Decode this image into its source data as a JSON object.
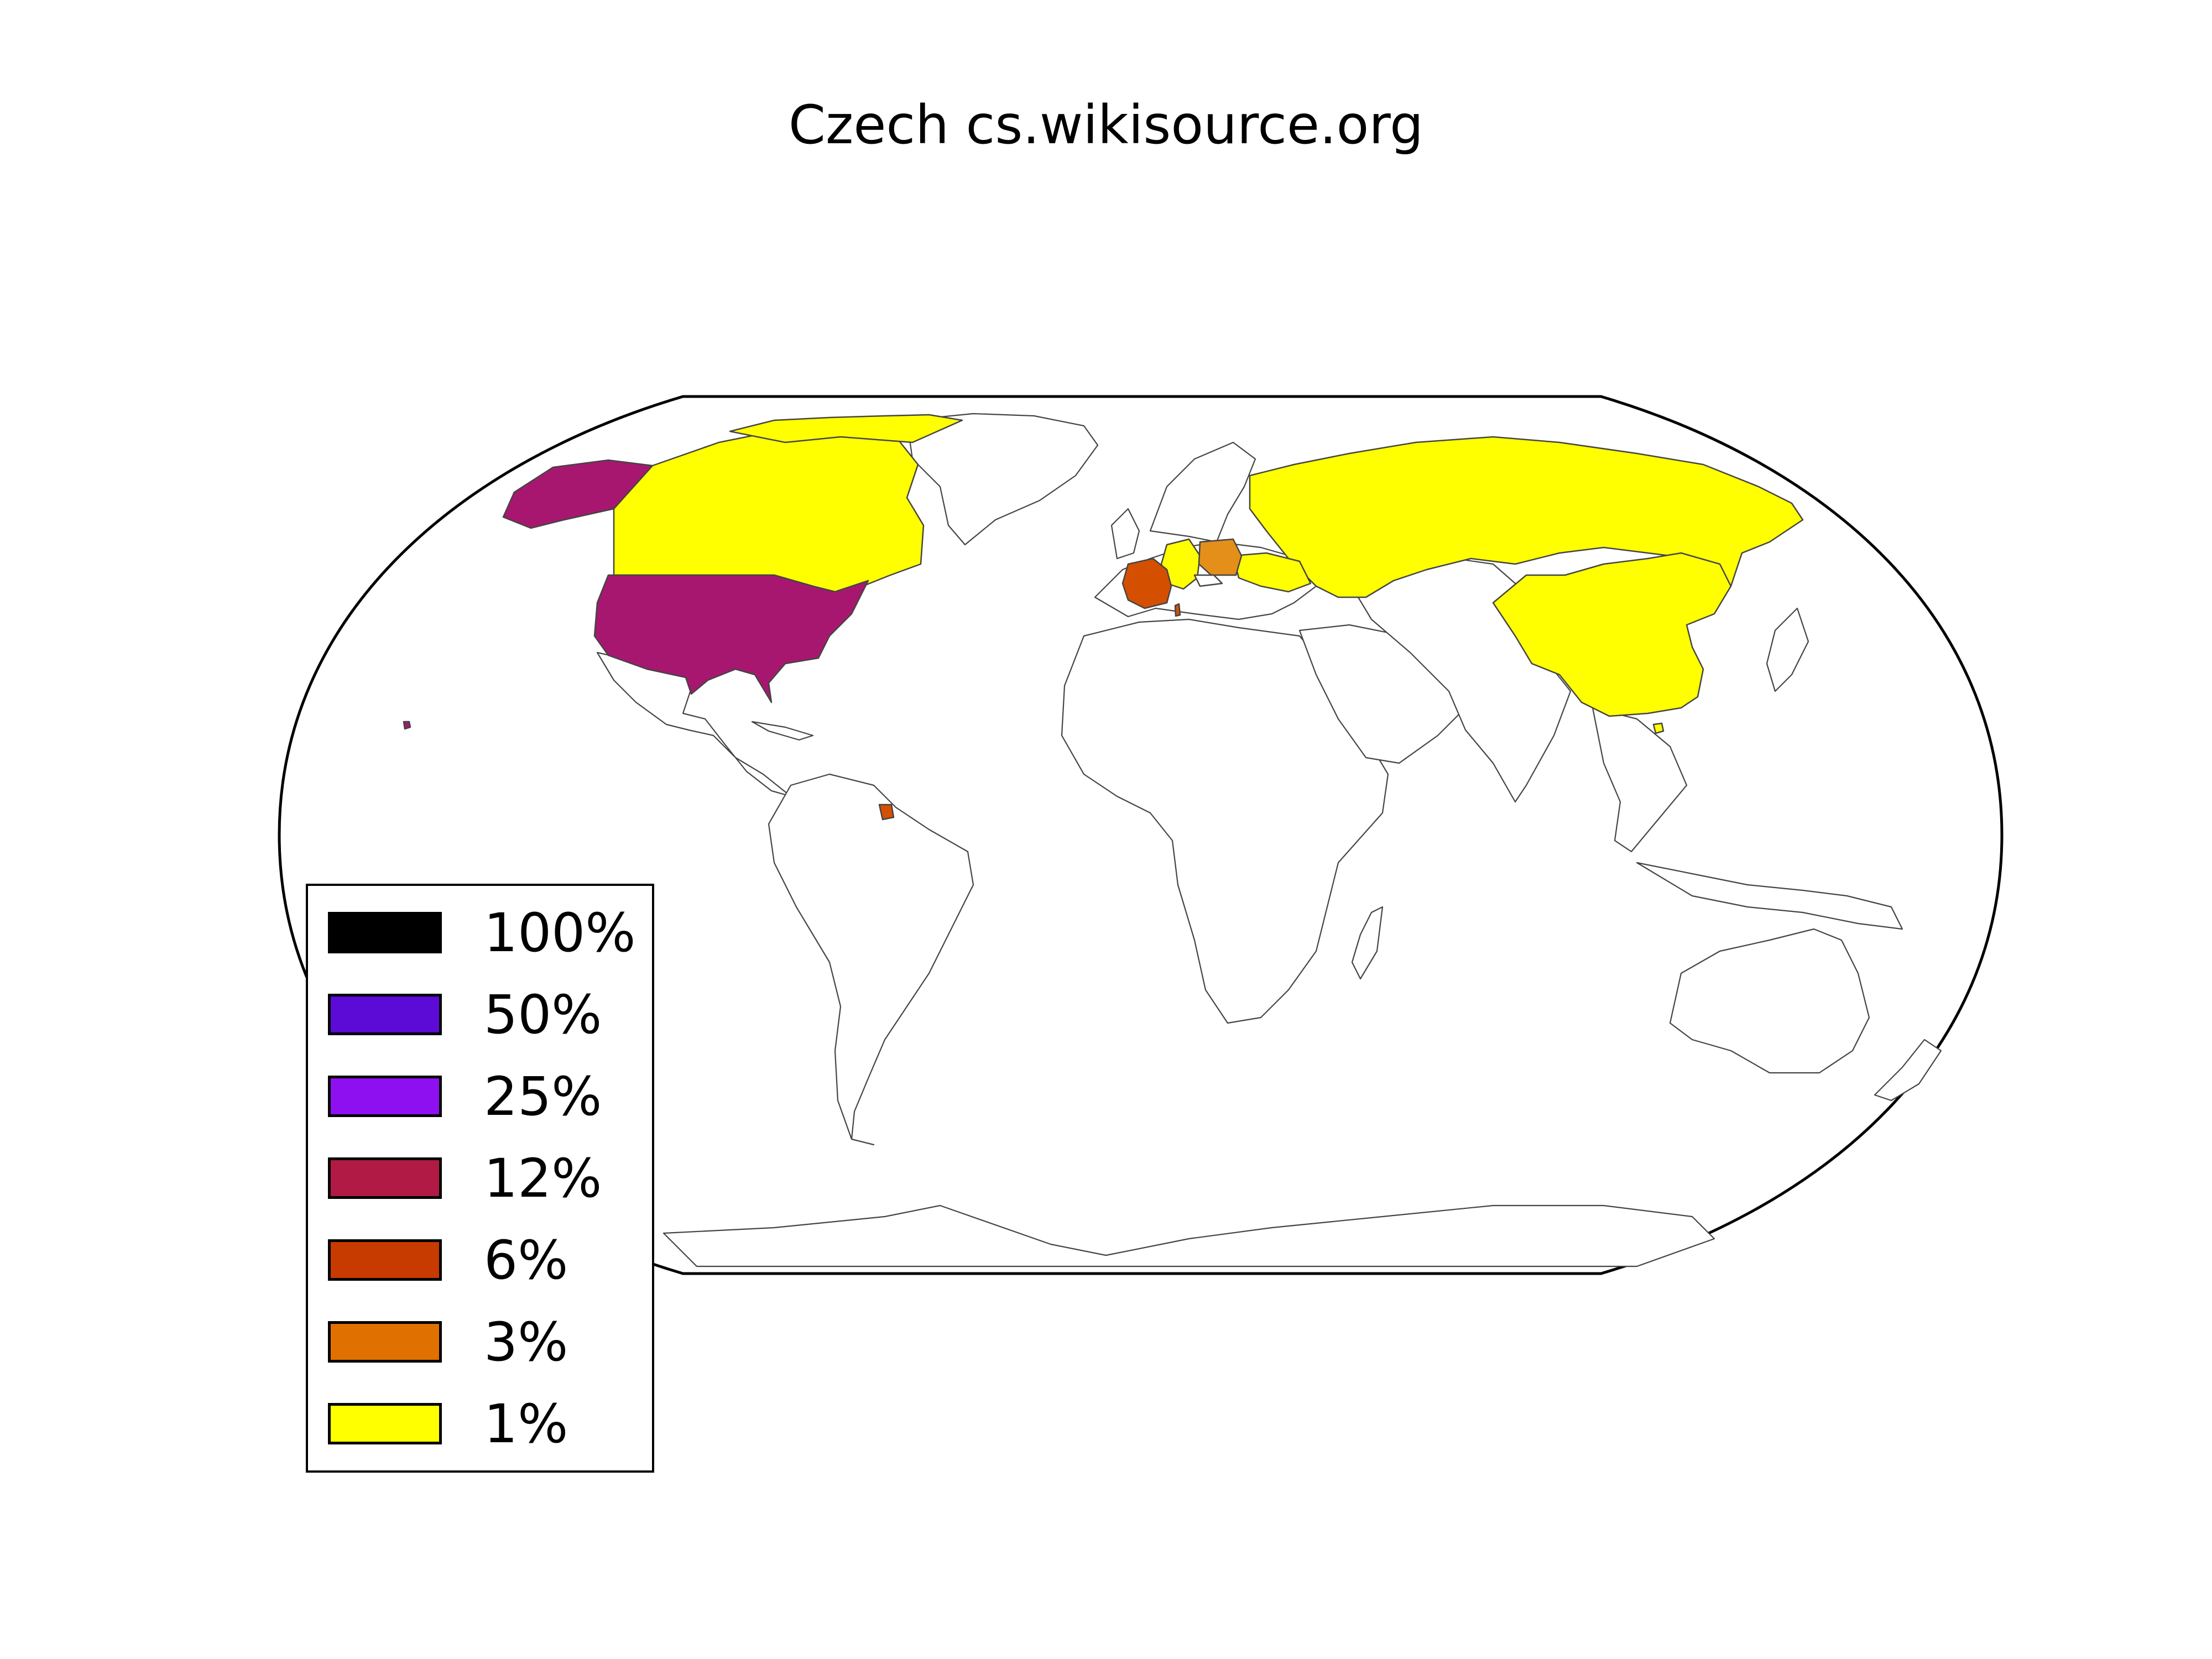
{
  "title": "Czech cs.wikisource.org",
  "legend": [
    {
      "label": "100%",
      "color": "#000000"
    },
    {
      "label": "50%",
      "color": "#5c0ad6"
    },
    {
      "label": "25%",
      "color": "#8e0ff0"
    },
    {
      "label": "12%",
      "color": "#b01a45"
    },
    {
      "label": "6%",
      "color": "#c73a00"
    },
    {
      "label": "3%",
      "color": "#e07000"
    },
    {
      "label": "1%",
      "color": "#ffff00"
    }
  ],
  "regions": [
    {
      "name": "United States",
      "bin": "12%",
      "color": "#a8176f"
    },
    {
      "name": "Canada",
      "bin": "1%",
      "color": "#ffff00"
    },
    {
      "name": "Russia",
      "bin": "1%",
      "color": "#ffff00"
    },
    {
      "name": "China",
      "bin": "1%",
      "color": "#ffff00"
    },
    {
      "name": "Germany",
      "bin": "1%",
      "color": "#ffff00"
    },
    {
      "name": "Ukraine",
      "bin": "1%",
      "color": "#ffff00"
    },
    {
      "name": "France",
      "bin": "6%",
      "color": "#d45000"
    },
    {
      "name": "Poland",
      "bin": "3%",
      "color": "#e38f1a"
    },
    {
      "name": "French Guiana",
      "bin": "6%",
      "color": "#d45000"
    }
  ]
}
